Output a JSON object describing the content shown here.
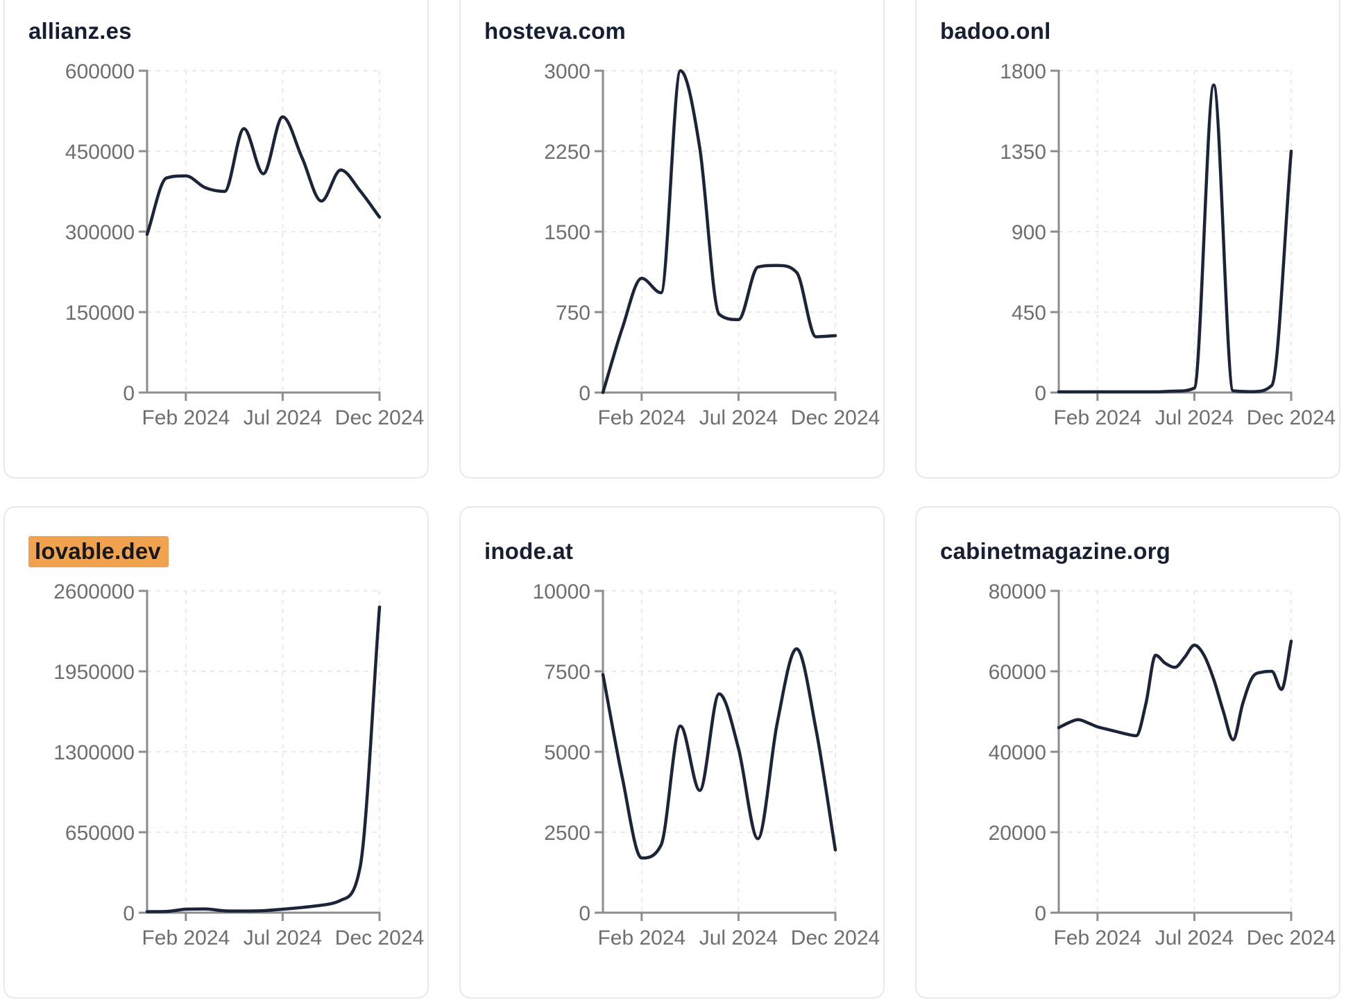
{
  "page": {
    "background": "#ffffff",
    "layout": "2 rows x 3 columns of line-chart cards, top and bottom rows partially cropped"
  },
  "colors": {
    "line": "#1b2438",
    "title": "#161f33",
    "tick_label": "#6e6e6e",
    "axis": "#8c8c8c",
    "grid": "#e9e9e9",
    "card_border": "#e7e9f1",
    "card_bg": "#ffffff",
    "highlight_bg": "#f0a24f",
    "highlight_text": "#141821"
  },
  "chart_data": [
    {
      "type": "line",
      "title": "allianz.es",
      "title_highlighted": false,
      "ylim": [
        0,
        600000
      ],
      "y_ticks": [
        0,
        150000,
        300000,
        450000,
        600000
      ],
      "x_range": "Dec 2023 - Dec 2024",
      "x_months_span": 12,
      "x_ticks": [
        {
          "label": "Feb 2024",
          "month_offset": 2
        },
        {
          "label": "Jul 2024",
          "month_offset": 7
        },
        {
          "label": "Dec 2024",
          "month_offset": 12
        }
      ],
      "x_month_offsets": [
        0,
        1,
        2,
        3,
        4,
        5,
        6,
        7,
        8,
        9,
        10,
        11,
        12
      ],
      "x_points": [
        "Dec 2023",
        "Jan 2024",
        "Feb 2024",
        "Mar 2024",
        "Apr 2024",
        "May 2024",
        "Jun 2024",
        "Jul 2024",
        "Aug 2024",
        "Sep 2024",
        "Oct 2024",
        "Nov 2024",
        "Dec 2024"
      ],
      "values": [
        295000,
        400000,
        404000,
        382000,
        375000,
        492000,
        408000,
        514000,
        438000,
        357000,
        415000,
        376000,
        327000
      ],
      "grid": true,
      "legend": "none"
    },
    {
      "type": "line",
      "title": "hosteva.com",
      "title_highlighted": false,
      "ylim": [
        0,
        3000
      ],
      "y_ticks": [
        0,
        750,
        1500,
        2250,
        3000
      ],
      "x_range": "Dec 2023 - Dec 2024",
      "x_months_span": 12,
      "x_ticks": [
        {
          "label": "Feb 2024",
          "month_offset": 2
        },
        {
          "label": "Jul 2024",
          "month_offset": 7
        },
        {
          "label": "Dec 2024",
          "month_offset": 12
        }
      ],
      "x_month_offsets": [
        0,
        1,
        2,
        3,
        4,
        5,
        6,
        7,
        8,
        9,
        10,
        11,
        12
      ],
      "x_points": [
        "Dec 2023",
        "Jan 2024",
        "Feb 2024",
        "Mar 2024",
        "Apr 2024",
        "May 2024",
        "Jun 2024",
        "Jul 2024",
        "Aug 2024",
        "Sep 2024",
        "Oct 2024",
        "Nov 2024",
        "Dec 2024"
      ],
      "values": [
        0,
        600,
        1065,
        930,
        3000,
        2280,
        730,
        680,
        1170,
        1185,
        1120,
        520,
        530
      ],
      "grid": true,
      "legend": "none"
    },
    {
      "type": "line",
      "title": "badoo.onl",
      "title_highlighted": false,
      "ylim": [
        0,
        1800
      ],
      "y_ticks": [
        0,
        450,
        900,
        1350,
        1800
      ],
      "x_range": "Dec 2023 - Dec 2024",
      "x_months_span": 12,
      "x_ticks": [
        {
          "label": "Feb 2024",
          "month_offset": 2
        },
        {
          "label": "Jul 2024",
          "month_offset": 7
        },
        {
          "label": "Dec 2024",
          "month_offset": 12
        }
      ],
      "x_month_offsets": [
        0,
        1,
        2,
        3,
        4,
        5,
        6,
        7,
        8,
        9,
        10,
        11,
        12
      ],
      "x_points": [
        "Dec 2023",
        "Jan 2024",
        "Feb 2024",
        "Mar 2024",
        "Apr 2024",
        "May 2024",
        "Jun 2024",
        "Jul 2024",
        "Aug 2024",
        "Sep 2024",
        "Oct 2024",
        "Nov 2024",
        "Dec 2024"
      ],
      "values": [
        4,
        4,
        4,
        4,
        4,
        4,
        8,
        25,
        1720,
        10,
        5,
        40,
        1350
      ],
      "grid": true,
      "legend": "none"
    },
    {
      "type": "line",
      "title": "lovable.dev",
      "title_highlighted": true,
      "ylim": [
        0,
        2600000
      ],
      "y_ticks": [
        0,
        650000,
        1300000,
        1950000,
        2600000
      ],
      "x_range": "Dec 2023 - Dec 2024",
      "x_months_span": 12,
      "x_ticks": [
        {
          "label": "Feb 2024",
          "month_offset": 2
        },
        {
          "label": "Jul 2024",
          "month_offset": 7
        },
        {
          "label": "Dec 2024",
          "month_offset": 12
        }
      ],
      "x_month_offsets": [
        0,
        1,
        2,
        3,
        4,
        5,
        6,
        7,
        8,
        9,
        10,
        11,
        12
      ],
      "x_points": [
        "Dec 2023",
        "Jan 2024",
        "Feb 2024",
        "Mar 2024",
        "Apr 2024",
        "May 2024",
        "Jun 2024",
        "Jul 2024",
        "Aug 2024",
        "Sep 2024",
        "Oct 2024",
        "Nov 2024",
        "Dec 2024"
      ],
      "values": [
        8000,
        10000,
        28000,
        30000,
        15000,
        13000,
        16000,
        28000,
        42000,
        60000,
        100000,
        370000,
        2470000
      ],
      "grid": true,
      "legend": "none"
    },
    {
      "type": "line",
      "title": "inode.at",
      "title_highlighted": false,
      "ylim": [
        0,
        10000
      ],
      "y_ticks": [
        0,
        2500,
        5000,
        7500,
        10000
      ],
      "x_range": "Dec 2023 - Dec 2024",
      "x_months_span": 12,
      "x_ticks": [
        {
          "label": "Feb 2024",
          "month_offset": 2
        },
        {
          "label": "Jul 2024",
          "month_offset": 7
        },
        {
          "label": "Dec 2024",
          "month_offset": 12
        }
      ],
      "x_month_offsets": [
        0,
        1,
        2,
        3,
        4,
        5,
        6,
        7,
        8,
        9,
        10,
        11,
        12
      ],
      "x_points": [
        "Dec 2023",
        "Jan 2024",
        "Feb 2024",
        "Mar 2024",
        "Apr 2024",
        "May 2024",
        "Jun 2024",
        "Jul 2024",
        "Aug 2024",
        "Sep 2024",
        "Oct 2024",
        "Nov 2024",
        "Dec 2024"
      ],
      "values": [
        7400,
        4200,
        1700,
        2100,
        5800,
        3800,
        6800,
        5100,
        2300,
        5900,
        8200,
        5700,
        1950
      ],
      "grid": true,
      "legend": "none"
    },
    {
      "type": "line",
      "title": "cabinetmagazine.org",
      "title_highlighted": false,
      "ylim": [
        0,
        80000
      ],
      "y_ticks": [
        0,
        20000,
        40000,
        60000,
        80000
      ],
      "x_range": "Dec 2023 - Dec 2024",
      "x_months_span": 12,
      "x_ticks": [
        {
          "label": "Feb 2024",
          "month_offset": 2
        },
        {
          "label": "Jul 2024",
          "month_offset": 7
        },
        {
          "label": "Dec 2024",
          "month_offset": 12
        }
      ],
      "x_month_offsets": [
        0,
        0.5,
        1,
        1.5,
        2,
        2.5,
        3,
        3.5,
        4,
        4.5,
        5,
        5.5,
        6,
        6.5,
        7,
        7.5,
        8,
        8.5,
        9,
        9.5,
        10,
        10.5,
        11,
        11.5,
        12
      ],
      "x_points": [
        "Dec 2023",
        "mid Dec",
        "Jan 2024",
        "mid Jan",
        "Feb 2024",
        "mid Feb",
        "Mar 2024",
        "mid Mar",
        "Apr 2024",
        "mid Apr",
        "May 2024",
        "mid May",
        "Jun 2024",
        "mid Jun",
        "Jul 2024",
        "mid Jul",
        "Aug 2024",
        "mid Aug",
        "Sep 2024",
        "mid Sep",
        "Oct 2024",
        "mid Oct",
        "Nov 2024",
        "mid Nov",
        "Dec 2024"
      ],
      "values": [
        46000,
        47200,
        48000,
        47200,
        46200,
        45600,
        45000,
        44400,
        44000,
        52000,
        64000,
        62000,
        61000,
        63500,
        66500,
        64000,
        58000,
        50000,
        43000,
        52000,
        58500,
        59800,
        60000,
        55500,
        67500
      ],
      "grid": true,
      "legend": "none"
    }
  ]
}
